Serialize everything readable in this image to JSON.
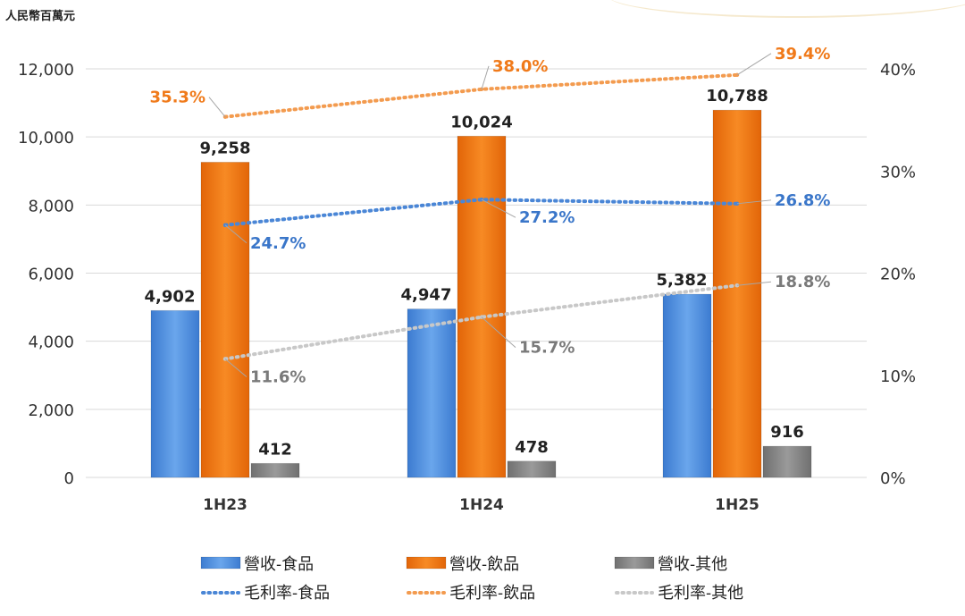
{
  "chart_data": {
    "type": "bar",
    "unit_label": "人民幣百萬元",
    "categories": [
      "1H23",
      "1H24",
      "1H25"
    ],
    "ylim": [
      0,
      12000
    ],
    "yticks": [
      "0",
      "2,000",
      "4,000",
      "6,000",
      "8,000",
      "10,000",
      "12,000"
    ],
    "y2lim": [
      0,
      40
    ],
    "y2ticks": [
      "0%",
      "10%",
      "20%",
      "30%",
      "40%"
    ],
    "series": [
      {
        "name": "營收-食品",
        "kind": "bar",
        "color": "#4a8ad8",
        "values": [
          4902,
          4947,
          5382
        ],
        "labels": [
          "4,902",
          "4,947",
          "5,382"
        ]
      },
      {
        "name": "營收-飲品",
        "kind": "bar",
        "color": "#f07512",
        "values": [
          9258,
          10024,
          10788
        ],
        "labels": [
          "9,258",
          "10,024",
          "10,788"
        ]
      },
      {
        "name": "營收-其他",
        "kind": "bar",
        "color": "#808080",
        "values": [
          412,
          478,
          916
        ],
        "labels": [
          "412",
          "478",
          "916"
        ]
      }
    ],
    "lines": [
      {
        "name": "毛利率-食品",
        "color": "#4a86d6",
        "label_color": "#3a76c9",
        "values": [
          24.7,
          27.2,
          26.8
        ],
        "labels": [
          "24.7%",
          "27.2%",
          "26.8%"
        ]
      },
      {
        "name": "毛利率-飲品",
        "color": "#f39b4f",
        "label_color": "#f07a1a",
        "values": [
          35.3,
          38.0,
          39.4
        ],
        "labels": [
          "35.3%",
          "38.0%",
          "39.4%"
        ]
      },
      {
        "name": "毛利率-其他",
        "color": "#c8c8c8",
        "label_color": "#7a7a7a",
        "values": [
          11.6,
          15.7,
          18.8
        ],
        "labels": [
          "11.6%",
          "15.7%",
          "18.8%"
        ]
      }
    ]
  }
}
